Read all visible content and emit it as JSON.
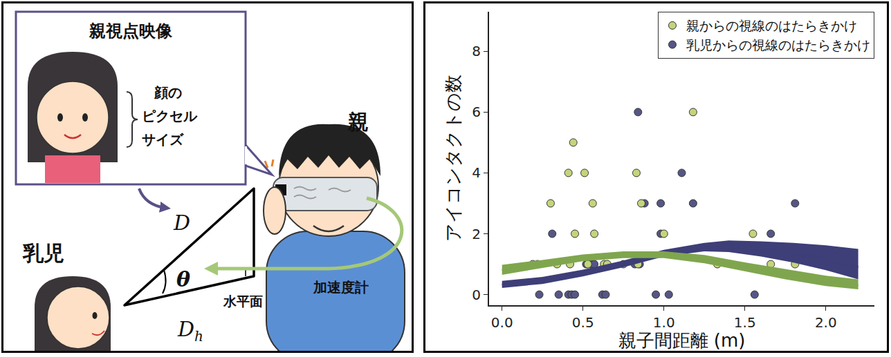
{
  "diagram": {
    "callout_title": "親視点映像",
    "face_label": [
      "顔の",
      "ピクセル",
      "サイズ"
    ],
    "parent": "親",
    "infant": "乳児",
    "distance": "D",
    "angle": "θ",
    "horizontal_distance": {
      "base": "D",
      "sub": "h"
    },
    "horizontal_plane": "水平面",
    "accelerometer": "加速度計"
  },
  "chart_data": {
    "type": "scatter",
    "x_label": "親子間距離 (m)",
    "y_label": "アイコンタクトの数",
    "xlim": [
      -0.08,
      2.3
    ],
    "ylim": [
      -0.35,
      9.3
    ],
    "xticks": [
      {
        "value": 0,
        "label": "0.0"
      },
      {
        "value": 0.5,
        "label": "0.5"
      },
      {
        "value": 1,
        "label": "1.0"
      },
      {
        "value": 1.5,
        "label": "1.5"
      },
      {
        "value": 2,
        "label": "2.0"
      }
    ],
    "yticks": [
      0,
      2,
      4,
      6,
      8
    ],
    "grid": false,
    "legend": "top-right",
    "series": [
      {
        "name": "乳児からの視線のはたらきかけ",
        "type": "scatter",
        "marker": "circle",
        "color": "#565686",
        "x": [
          0.23,
          0.31,
          0.35,
          0.41,
          0.43,
          0.45,
          0.52,
          0.55,
          0.57,
          0.62,
          0.64,
          0.82,
          0.84,
          0.85,
          0.88,
          0.95,
          0.98,
          0.98,
          1.03,
          1.11,
          1.18,
          1.56,
          1.66,
          1.81
        ],
        "values": [
          0,
          2,
          0,
          0,
          0,
          0,
          1,
          1,
          1,
          0,
          0,
          1,
          6,
          1,
          3,
          0,
          2,
          3,
          0,
          4,
          3,
          0,
          2,
          3
        ]
      },
      {
        "name": "親からの視線のはたらきかけ",
        "type": "scatter",
        "marker": "circle",
        "color": "#c3d47c",
        "x": [
          0.19,
          0.22,
          0.3,
          0.34,
          0.41,
          0.42,
          0.44,
          0.45,
          0.51,
          0.53,
          0.56,
          0.57,
          0.63,
          0.65,
          0.75,
          0.83,
          0.84,
          0.86,
          1.0,
          1.18,
          1.33,
          1.55,
          1.66,
          1.81
        ],
        "values": [
          1,
          1,
          3,
          1,
          4,
          1,
          5,
          2,
          4,
          1,
          3,
          2,
          1,
          1,
          1,
          4,
          1,
          3,
          2,
          6,
          1,
          2,
          1,
          1
        ]
      },
      {
        "type": "line",
        "line_style": "solid",
        "color": "#3e3e78",
        "x": [
          0,
          0.25,
          0.5,
          0.75,
          1,
          1.25,
          1.4,
          1.6,
          1.8,
          2,
          2.2
        ],
        "values": [
          0.32,
          0.45,
          0.7,
          1.0,
          1.35,
          1.55,
          1.58,
          1.5,
          1.35,
          1.15,
          0.9
        ],
        "lower": [
          0.22,
          0.35,
          0.6,
          0.9,
          1.25,
          1.42,
          1.4,
          1.25,
          1.05,
          0.8,
          0.5
        ],
        "upper": [
          0.45,
          0.58,
          0.82,
          1.12,
          1.47,
          1.7,
          1.78,
          1.75,
          1.7,
          1.62,
          1.5
        ]
      },
      {
        "type": "line",
        "line_style": "solid",
        "color": "#7fa64e",
        "x": [
          0,
          0.25,
          0.5,
          0.75,
          1,
          1.25,
          1.5,
          1.75,
          2,
          2.2
        ],
        "values": [
          0.8,
          1.0,
          1.2,
          1.3,
          1.3,
          1.15,
          0.9,
          0.65,
          0.42,
          0.3
        ],
        "lower": [
          0.65,
          0.88,
          1.1,
          1.2,
          1.2,
          1.03,
          0.76,
          0.5,
          0.28,
          0.17
        ],
        "upper": [
          0.98,
          1.14,
          1.32,
          1.42,
          1.42,
          1.3,
          1.06,
          0.84,
          0.62,
          0.5
        ]
      }
    ]
  }
}
